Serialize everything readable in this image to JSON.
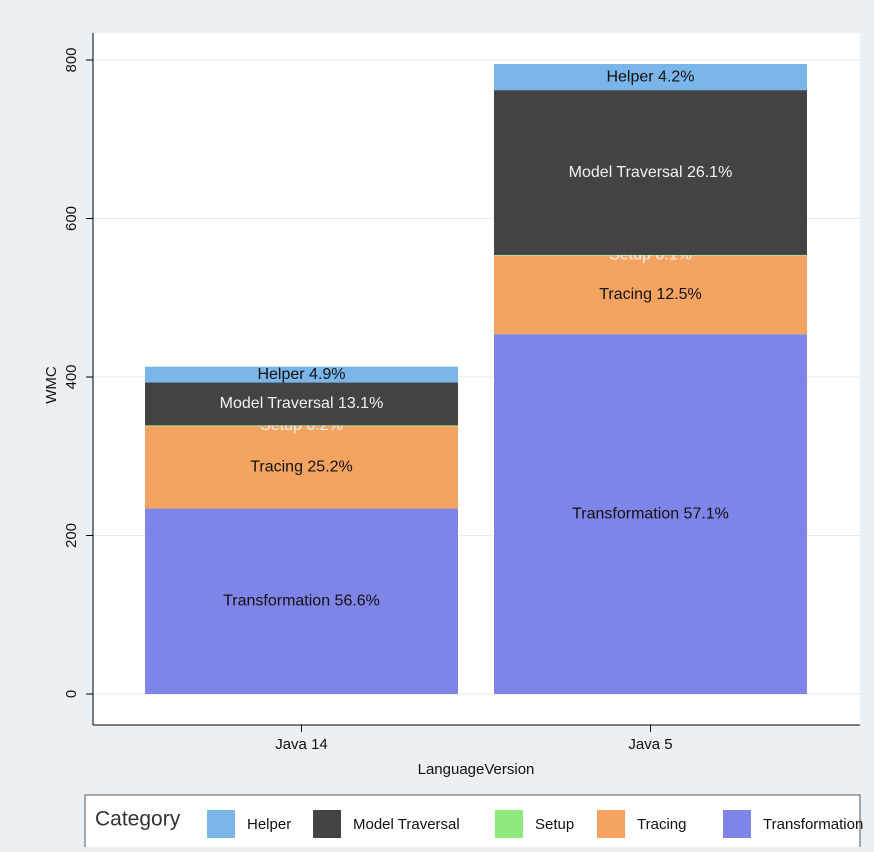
{
  "chart_data": {
    "type": "stacked_bar",
    "x_label": "LanguageVersion",
    "y_label": "WMC",
    "categories": [
      "Java 14",
      "Java 5"
    ],
    "ylim": [
      0,
      800
    ],
    "yticks": [
      0,
      200,
      400,
      600,
      800
    ],
    "grid": true,
    "legend_title": "Category",
    "legend": "bottom",
    "series": [
      {
        "name": "Helper",
        "color": "#7ab6ea",
        "label_color": "#111111",
        "values": [
          20,
          33
        ],
        "segment_labels": [
          "Helper 4.9%",
          "Helper 4.2%"
        ]
      },
      {
        "name": "Model Traversal",
        "color": "#434346",
        "label_color": "#f2f2f2",
        "values": [
          54,
          208
        ],
        "segment_labels": [
          "Model Traversal 13.1%",
          "Model Traversal 26.1%"
        ]
      },
      {
        "name": "Setup",
        "color": "#8ee87e",
        "label_color": "#f2f2f2",
        "values": [
          1,
          1
        ],
        "segment_labels": [
          "Setup 0.2%",
          "Setup 0.1%"
        ]
      },
      {
        "name": "Tracing",
        "color": "#f4a460",
        "label_color": "#111111",
        "values": [
          104,
          99
        ],
        "segment_labels": [
          "Tracing 25.2%",
          "Tracing 12.5%"
        ]
      },
      {
        "name": "Transformation",
        "color": "#7f85e8",
        "label_color": "#111111",
        "values": [
          234,
          454
        ],
        "segment_labels": [
          "Transformation 56.6%",
          "Transformation 57.1%"
        ]
      }
    ]
  }
}
